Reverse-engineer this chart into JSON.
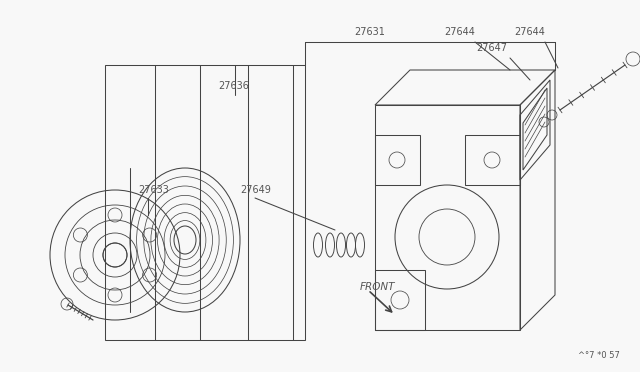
{
  "bg_color": "#f8f8f8",
  "line_color": "#444444",
  "text_color": "#555555",
  "lw": 0.75,
  "fig_w": 6.4,
  "fig_h": 3.72,
  "footer": "^°7 *0 57"
}
